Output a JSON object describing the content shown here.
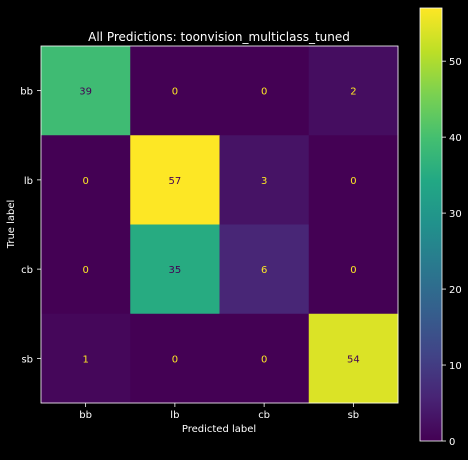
{
  "chart_data": {
    "type": "heatmap",
    "title": "All Predictions: toonvision_multiclass_tuned",
    "xlabel": "Predicted label",
    "ylabel": "True label",
    "x_categories": [
      "bb",
      "lb",
      "cb",
      "sb"
    ],
    "y_categories": [
      "bb",
      "lb",
      "cb",
      "sb"
    ],
    "values": [
      [
        39,
        0,
        0,
        2
      ],
      [
        0,
        57,
        3,
        0
      ],
      [
        0,
        35,
        6,
        0
      ],
      [
        1,
        0,
        0,
        54
      ]
    ],
    "colormap": "viridis",
    "colorbar": {
      "min": 0,
      "max": 57,
      "ticks": [
        0,
        10,
        20,
        30,
        40,
        50
      ]
    },
    "colors": {
      "background": "#000000",
      "text": "#ffffff",
      "label_on_dark": "#fde725",
      "label_on_light": "#440154"
    }
  }
}
